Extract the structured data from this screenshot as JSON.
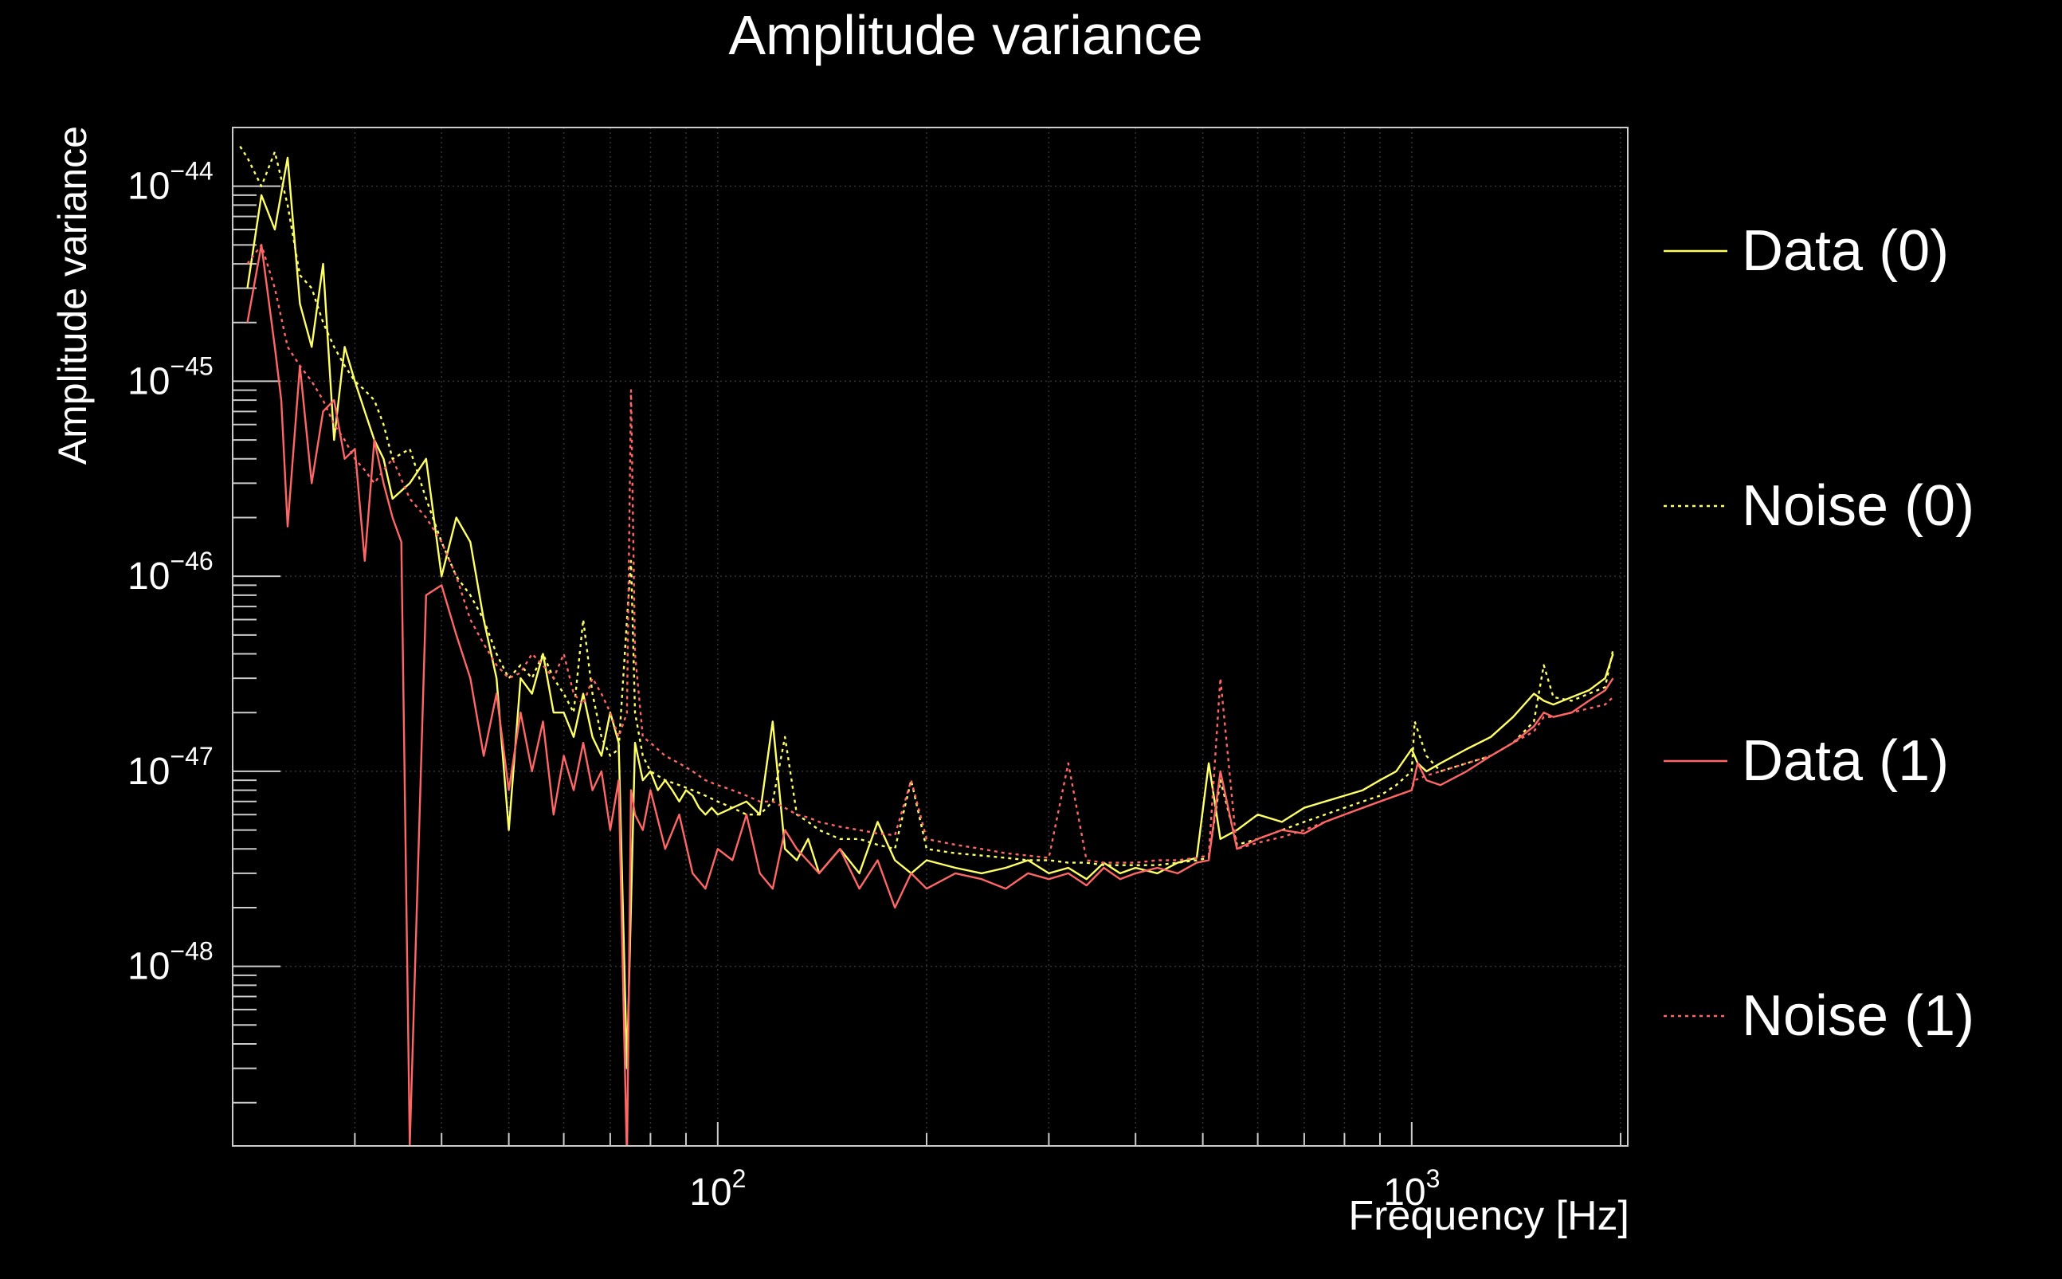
{
  "chart_data": {
    "type": "line",
    "title": "Amplitude variance",
    "xlabel": "Frequency [Hz]",
    "ylabel": "Amplitude variance",
    "x_scale": "log",
    "y_scale": "log",
    "xlim": [
      20,
      2048
    ],
    "ylim": [
      1.2e-49,
      2e-44
    ],
    "x_ticks": [
      {
        "value": 100,
        "base": "10",
        "exp": "2"
      },
      {
        "value": 1000,
        "base": "10",
        "exp": "3"
      }
    ],
    "y_ticks": [
      {
        "value": 1e-44,
        "base": "10",
        "exp": "−44"
      },
      {
        "value": 1e-45,
        "base": "10",
        "exp": "−45"
      },
      {
        "value": 1e-46,
        "base": "10",
        "exp": "−46"
      },
      {
        "value": 1e-47,
        "base": "10",
        "exp": "−47"
      },
      {
        "value": 1e-48,
        "base": "10",
        "exp": "−48"
      }
    ],
    "grid": true,
    "legend_position": "right",
    "background": "#000000",
    "axis_color": "#cccccc",
    "series": [
      {
        "name": "Data (0)",
        "color": "#ffff66",
        "style": "solid",
        "x": [
          21,
          22,
          23,
          24,
          25,
          26,
          27,
          28,
          29,
          30,
          31,
          32,
          33,
          34,
          36,
          38,
          40,
          42,
          44,
          46,
          48,
          50,
          52,
          54,
          56,
          58,
          60,
          62,
          64,
          66,
          68,
          70,
          72,
          74,
          76,
          78,
          80,
          82,
          84,
          86,
          88,
          90,
          92,
          94,
          96,
          98,
          100,
          105,
          110,
          115,
          120,
          125,
          130,
          135,
          140,
          150,
          160,
          170,
          180,
          190,
          200,
          220,
          240,
          260,
          280,
          300,
          320,
          340,
          360,
          380,
          400,
          430,
          460,
          490,
          510,
          530,
          560,
          600,
          650,
          700,
          750,
          800,
          850,
          900,
          950,
          1000,
          1020,
          1050,
          1100,
          1200,
          1300,
          1400,
          1500,
          1550,
          1600,
          1700,
          1800,
          1900,
          1950
        ],
        "y": [
          3e-45,
          9e-45,
          6e-45,
          1.4e-44,
          2.5e-45,
          1.5e-45,
          4e-45,
          5e-46,
          1.5e-45,
          1e-45,
          7e-46,
          5e-46,
          4e-46,
          2.5e-46,
          3e-46,
          4e-46,
          1e-46,
          2e-46,
          1.5e-46,
          6e-47,
          3e-47,
          5e-48,
          3e-47,
          2.5e-47,
          4e-47,
          2e-47,
          2e-47,
          1.5e-47,
          2.5e-47,
          1.5e-47,
          1.2e-47,
          2e-47,
          1.4e-47,
          3e-49,
          1.4e-47,
          9e-48,
          1e-47,
          8e-48,
          9e-48,
          8e-48,
          7e-48,
          8e-48,
          7.5e-48,
          6.5e-48,
          6e-48,
          6.5e-48,
          6e-48,
          6.5e-48,
          7e-48,
          6e-48,
          1.8e-47,
          4e-48,
          3.5e-48,
          4.5e-48,
          3e-48,
          4e-48,
          3e-48,
          5.5e-48,
          3.5e-48,
          3e-48,
          3.5e-48,
          3.2e-48,
          3e-48,
          3.2e-48,
          3.5e-48,
          3e-48,
          3.2e-48,
          2.8e-48,
          3.4e-48,
          3e-48,
          3.2e-48,
          3e-48,
          3.4e-48,
          3.6e-48,
          1.1e-47,
          4.5e-48,
          5e-48,
          6e-48,
          5.5e-48,
          6.5e-48,
          7e-48,
          7.5e-48,
          8e-48,
          9e-48,
          1e-47,
          1.3e-47,
          1.1e-47,
          1e-47,
          1.1e-47,
          1.3e-47,
          1.5e-47,
          1.9e-47,
          2.5e-47,
          2.3e-47,
          2.2e-47,
          2.4e-47,
          2.6e-47,
          3e-47,
          4e-47
        ]
      },
      {
        "name": "Noise (0)",
        "color": "#ffff66",
        "style": "dotted",
        "x": [
          20.5,
          21,
          22,
          23,
          24,
          25,
          26,
          27,
          28,
          29,
          30,
          31,
          32,
          33,
          34,
          36,
          38,
          40,
          42,
          44,
          46,
          48,
          50,
          52,
          54,
          56,
          58,
          60,
          62,
          64,
          66,
          68,
          70,
          72,
          74,
          75,
          76,
          78,
          80,
          84,
          88,
          92,
          96,
          100,
          105,
          110,
          115,
          120,
          125,
          130,
          135,
          140,
          150,
          160,
          170,
          180,
          190,
          200,
          220,
          240,
          260,
          280,
          300,
          320,
          340,
          360,
          380,
          400,
          430,
          460,
          490,
          510,
          530,
          560,
          600,
          650,
          700,
          750,
          800,
          850,
          900,
          950,
          1000,
          1010,
          1050,
          1100,
          1200,
          1300,
          1400,
          1500,
          1550,
          1600,
          1700,
          1800,
          1900,
          1950
        ],
        "y": [
          1.6e-44,
          1.4e-44,
          1e-44,
          1.5e-44,
          8e-45,
          3.5e-45,
          3e-45,
          2e-45,
          1.5e-45,
          1.2e-45,
          1e-45,
          9e-46,
          8e-46,
          6e-46,
          4e-46,
          4.5e-46,
          2.5e-46,
          1.5e-46,
          1e-46,
          8e-47,
          6e-47,
          4e-47,
          3e-47,
          3.5e-47,
          3e-47,
          4e-47,
          3e-47,
          2.5e-47,
          2e-47,
          6e-47,
          2.5e-47,
          1.5e-47,
          1.2e-47,
          1.3e-47,
          6e-47,
          1.2e-46,
          2e-47,
          1.2e-47,
          1e-47,
          9e-48,
          8.5e-48,
          8e-48,
          7.5e-48,
          7e-48,
          6.5e-48,
          6e-48,
          6e-48,
          7e-48,
          1.5e-47,
          6e-48,
          5.5e-48,
          5e-48,
          4.5e-48,
          4.5e-48,
          4.2e-48,
          4e-48,
          9e-48,
          4e-48,
          3.8e-48,
          3.7e-48,
          3.6e-48,
          3.5e-48,
          3.5e-48,
          3.4e-48,
          3.4e-48,
          3.3e-48,
          3.3e-48,
          3.3e-48,
          3.3e-48,
          3.4e-48,
          3.5e-48,
          3.6e-48,
          9e-48,
          4.2e-48,
          4.5e-48,
          5e-48,
          5.5e-48,
          6e-48,
          6.5e-48,
          7e-48,
          7.5e-48,
          8.5e-48,
          1e-47,
          1.8e-47,
          1.2e-47,
          1e-47,
          1.1e-47,
          1.2e-47,
          1.4e-47,
          1.8e-47,
          3.5e-47,
          2.4e-47,
          2.3e-47,
          2.5e-47,
          2.7e-47,
          4.2e-47
        ]
      },
      {
        "name": "Data (1)",
        "color": "#ff6666",
        "style": "solid",
        "x": [
          21,
          22,
          23,
          23.5,
          24,
          25,
          26,
          27,
          28,
          29,
          30,
          31,
          32,
          33,
          34,
          35,
          36,
          38,
          40,
          42,
          44,
          46,
          48,
          50,
          52,
          54,
          56,
          58,
          60,
          62,
          64,
          66,
          68,
          70,
          72,
          74,
          75,
          76,
          78,
          80,
          84,
          88,
          92,
          96,
          100,
          105,
          110,
          115,
          120,
          125,
          130,
          140,
          150,
          160,
          170,
          180,
          190,
          200,
          220,
          240,
          260,
          280,
          300,
          320,
          340,
          360,
          380,
          400,
          430,
          460,
          490,
          510,
          530,
          560,
          600,
          650,
          700,
          750,
          800,
          850,
          900,
          950,
          1000,
          1020,
          1050,
          1100,
          1200,
          1300,
          1400,
          1500,
          1550,
          1600,
          1700,
          1800,
          1900,
          1950
        ],
        "y": [
          2e-45,
          5e-45,
          1.5e-45,
          8e-46,
          1.8e-46,
          1.2e-45,
          3e-46,
          7e-46,
          8e-46,
          4e-46,
          4.5e-46,
          1.2e-46,
          5e-46,
          3e-46,
          2e-46,
          1.5e-46,
          1.2e-49,
          8e-47,
          9e-47,
          5e-47,
          3e-47,
          1.2e-47,
          2.5e-47,
          8e-48,
          2e-47,
          1e-47,
          1.8e-47,
          6e-48,
          1.2e-47,
          8e-48,
          1.4e-47,
          8e-48,
          1e-47,
          5e-48,
          9e-48,
          1e-49,
          8e-48,
          6e-48,
          5e-48,
          8e-48,
          4e-48,
          6e-48,
          3e-48,
          2.5e-48,
          4e-48,
          3.5e-48,
          6e-48,
          3e-48,
          2.5e-48,
          5e-48,
          4e-48,
          3e-48,
          4e-48,
          2.5e-48,
          3.5e-48,
          2e-48,
          3e-48,
          2.5e-48,
          3e-48,
          2.8e-48,
          2.5e-48,
          3e-48,
          2.8e-48,
          3e-48,
          2.6e-48,
          3.2e-48,
          2.8e-48,
          3e-48,
          3.2e-48,
          3e-48,
          3.4e-48,
          3.5e-48,
          1e-47,
          4e-48,
          4.5e-48,
          5e-48,
          4.8e-48,
          5.5e-48,
          6e-48,
          6.5e-48,
          7e-48,
          7.5e-48,
          8e-48,
          1.1e-47,
          9e-48,
          8.5e-48,
          1e-47,
          1.2e-47,
          1.4e-47,
          1.7e-47,
          2e-47,
          1.9e-47,
          2e-47,
          2.3e-47,
          2.6e-47,
          3e-47
        ]
      },
      {
        "name": "Noise (1)",
        "color": "#ff6666",
        "style": "dotted",
        "x": [
          21,
          22,
          23,
          24,
          25,
          26,
          27,
          28,
          29,
          30,
          31,
          32,
          33,
          34,
          36,
          38,
          40,
          42,
          44,
          46,
          48,
          50,
          52,
          54,
          56,
          58,
          60,
          62,
          64,
          66,
          68,
          70,
          72,
          74,
          75,
          76,
          78,
          80,
          84,
          88,
          92,
          96,
          100,
          105,
          110,
          115,
          120,
          125,
          130,
          135,
          140,
          150,
          160,
          170,
          180,
          190,
          200,
          220,
          240,
          260,
          280,
          300,
          320,
          340,
          360,
          380,
          400,
          430,
          460,
          490,
          510,
          530,
          560,
          600,
          650,
          700,
          750,
          800,
          850,
          900,
          950,
          1000,
          1010,
          1050,
          1100,
          1200,
          1300,
          1400,
          1500,
          1550,
          1600,
          1700,
          1800,
          1900,
          1950
        ],
        "y": [
          4e-45,
          5e-45,
          3e-45,
          1.5e-45,
          1.2e-45,
          1e-45,
          8e-46,
          6e-46,
          5e-46,
          4e-46,
          3.5e-46,
          3e-46,
          3.5e-46,
          4e-46,
          2.5e-46,
          2e-46,
          1.5e-46,
          1e-46,
          6e-47,
          4.5e-47,
          3.5e-47,
          3e-47,
          3.2e-47,
          4e-47,
          3.5e-47,
          3e-47,
          4e-47,
          2.5e-47,
          2.2e-47,
          3e-47,
          2.5e-47,
          2e-47,
          1.5e-47,
          2e-47,
          9e-46,
          4e-47,
          1.5e-47,
          1.4e-47,
          1.2e-47,
          1.1e-47,
          1e-47,
          9e-48,
          8.5e-48,
          8e-48,
          7.5e-48,
          7e-48,
          7e-48,
          6.5e-48,
          6e-48,
          5.8e-48,
          5.5e-48,
          5.2e-48,
          5e-48,
          4.8e-48,
          4.7e-48,
          9e-48,
          4.5e-48,
          4.2e-48,
          4e-48,
          3.8e-48,
          3.7e-48,
          3.6e-48,
          1.1e-47,
          3.5e-48,
          3.4e-48,
          3.4e-48,
          3.4e-48,
          3.5e-48,
          3.5e-48,
          3.6e-48,
          3.7e-48,
          3e-47,
          4e-48,
          4.3e-48,
          4.6e-48,
          5e-48,
          5.5e-48,
          6e-48,
          6.5e-48,
          7e-48,
          7.5e-48,
          8e-48,
          9e-48,
          9.5e-48,
          1e-47,
          1.1e-47,
          1.2e-47,
          1.4e-47,
          1.6e-47,
          1.9e-47,
          1.9e-47,
          2e-47,
          2.1e-47,
          2.2e-47,
          2.4e-47
        ]
      }
    ]
  }
}
